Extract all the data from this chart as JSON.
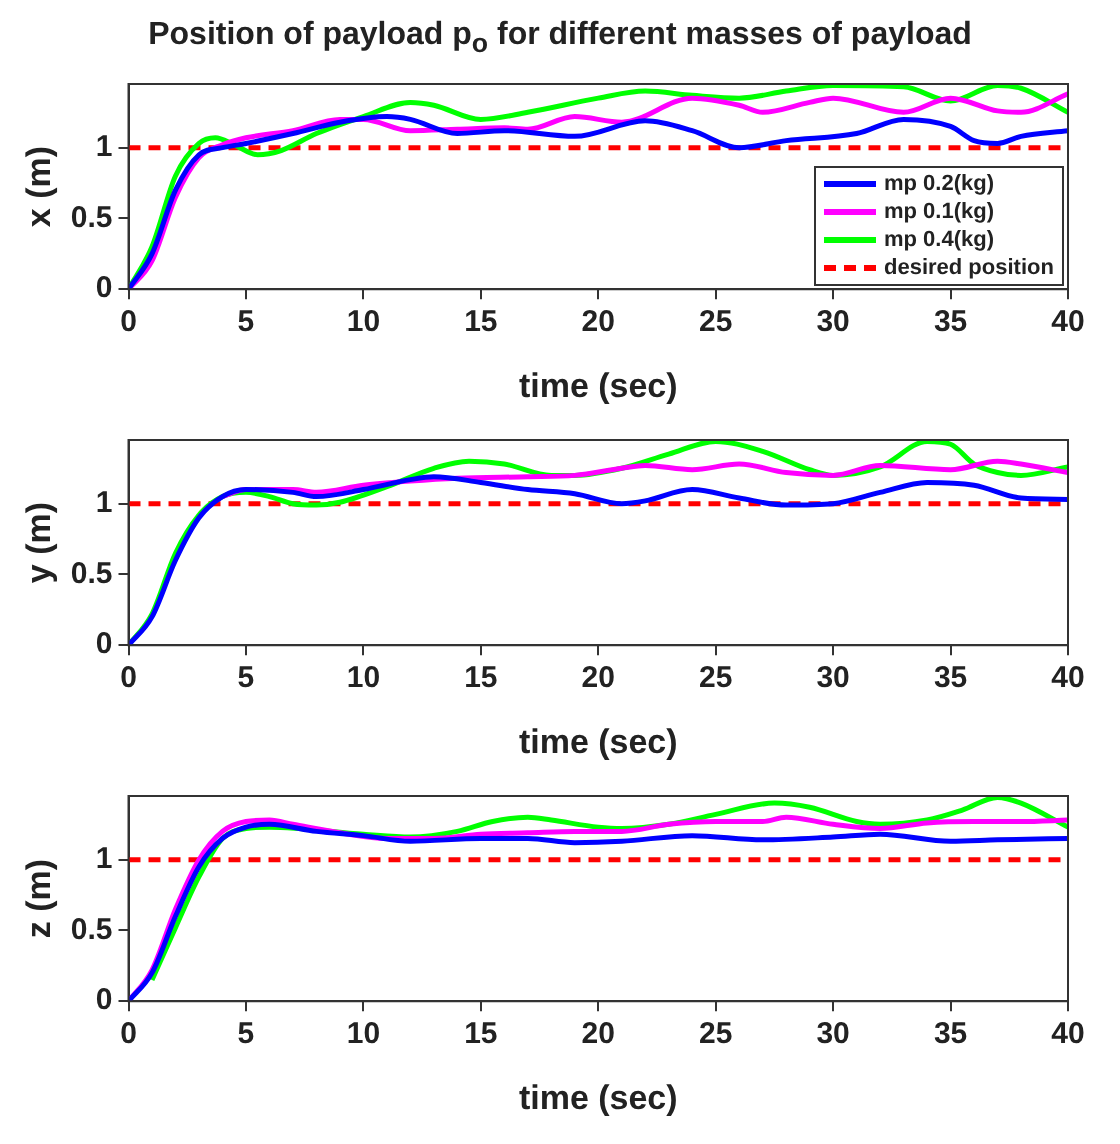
{
  "chart_data": [
    {
      "type": "line",
      "title": "Position of payload p$_{o}$ for different masses of payload",
      "xlabel": "time (sec)",
      "ylabel": "x (m)",
      "xlim": [
        0,
        40
      ],
      "xticks": [
        0,
        5,
        10,
        15,
        20,
        25,
        30,
        35,
        40
      ],
      "ylim": [
        0,
        1.45
      ],
      "yticks": [
        0,
        0.5,
        1
      ],
      "grid": false,
      "legend": "bottom right",
      "marker": "none",
      "line_style": "solid",
      "ref_lines": [
        {
          "axis": "y",
          "value": 1,
          "label": "desired position",
          "color": "#ff0000",
          "line_style": "dashed"
        }
      ],
      "series": [
        {
          "name": "mp 0.2(kg)",
          "color": "#0000ff",
          "x": [
            0,
            1,
            2,
            3,
            4,
            5,
            7,
            9,
            11,
            12,
            14,
            16,
            19,
            22,
            24,
            26,
            28,
            31,
            33,
            35,
            36,
            37,
            38,
            40
          ],
          "values": [
            0,
            0.25,
            0.7,
            0.95,
            1.0,
            1.03,
            1.1,
            1.18,
            1.22,
            1.2,
            1.1,
            1.12,
            1.08,
            1.19,
            1.12,
            1.0,
            1.05,
            1.1,
            1.2,
            1.15,
            1.05,
            1.03,
            1.08,
            1.12
          ]
        },
        {
          "name": "mp 0.1(kg)",
          "color": "#ff00ff",
          "x": [
            0,
            1,
            2,
            3,
            4,
            5,
            7,
            9,
            10,
            12,
            14,
            16,
            17,
            19,
            21,
            24,
            26,
            27,
            29,
            30,
            33,
            35,
            37,
            38,
            40
          ],
          "values": [
            0,
            0.2,
            0.65,
            0.93,
            1.02,
            1.07,
            1.12,
            1.2,
            1.2,
            1.12,
            1.13,
            1.14,
            1.13,
            1.22,
            1.18,
            1.35,
            1.3,
            1.25,
            1.32,
            1.35,
            1.25,
            1.35,
            1.26,
            1.25,
            1.38
          ]
        },
        {
          "name": "mp 0.4(kg)",
          "color": "#00ff00",
          "x": [
            0,
            1,
            2,
            3,
            3.7,
            4.5,
            5.5,
            6.5,
            8,
            10,
            12,
            13,
            15,
            17,
            20,
            22,
            24,
            26,
            28,
            30,
            33,
            35,
            37,
            38,
            40
          ],
          "values": [
            0,
            0.3,
            0.8,
            1.03,
            1.07,
            1.02,
            0.95,
            0.98,
            1.1,
            1.22,
            1.32,
            1.3,
            1.2,
            1.25,
            1.35,
            1.4,
            1.37,
            1.35,
            1.4,
            1.44,
            1.43,
            1.33,
            1.44,
            1.42,
            1.25
          ]
        }
      ]
    },
    {
      "type": "line",
      "xlabel": "time (sec)",
      "ylabel": "y (m)",
      "xlim": [
        0,
        40
      ],
      "xticks": [
        0,
        5,
        10,
        15,
        20,
        25,
        30,
        35,
        40
      ],
      "ylim": [
        0,
        1.45
      ],
      "yticks": [
        0,
        0.5,
        1
      ],
      "grid": false,
      "marker": "none",
      "line_style": "solid",
      "ref_lines": [
        {
          "axis": "y",
          "value": 1,
          "color": "#ff0000",
          "line_style": "dashed"
        }
      ],
      "series": [
        {
          "color": "#0000ff",
          "x": [
            0,
            1,
            2,
            3,
            4,
            5,
            7,
            8,
            10,
            12,
            13,
            15,
            17,
            19,
            21,
            22,
            24,
            26,
            28,
            30,
            32,
            34,
            36,
            38,
            40
          ],
          "values": [
            0,
            0.2,
            0.6,
            0.9,
            1.05,
            1.1,
            1.08,
            1.05,
            1.1,
            1.17,
            1.19,
            1.15,
            1.1,
            1.07,
            1.0,
            1.02,
            1.1,
            1.04,
            0.99,
            1.0,
            1.08,
            1.15,
            1.13,
            1.04,
            1.03
          ]
        },
        {
          "color": "#ff00ff",
          "x": [
            4,
            5,
            7,
            8,
            10,
            12,
            14,
            17,
            19,
            21,
            22,
            24,
            26,
            28,
            30,
            32,
            35,
            37,
            38,
            40
          ],
          "values": [
            1.05,
            1.1,
            1.1,
            1.08,
            1.13,
            1.16,
            1.18,
            1.19,
            1.2,
            1.25,
            1.27,
            1.24,
            1.28,
            1.22,
            1.2,
            1.27,
            1.24,
            1.3,
            1.28,
            1.22
          ]
        },
        {
          "color": "#00ff00",
          "x": [
            0,
            1,
            2,
            3,
            4,
            5,
            6,
            7,
            8,
            9,
            11,
            13,
            14.5,
            16,
            18,
            19,
            21,
            23,
            25,
            27,
            29,
            30,
            32,
            34,
            35,
            36,
            37,
            38,
            40
          ],
          "values": [
            0,
            0.22,
            0.65,
            0.92,
            1.05,
            1.08,
            1.05,
            1.0,
            0.99,
            1.01,
            1.12,
            1.25,
            1.3,
            1.28,
            1.2,
            1.2,
            1.25,
            1.35,
            1.44,
            1.37,
            1.24,
            1.2,
            1.26,
            1.44,
            1.42,
            1.28,
            1.22,
            1.2,
            1.26
          ]
        }
      ]
    },
    {
      "type": "line",
      "xlabel": "time (sec)",
      "ylabel": "z (m)",
      "xlim": [
        0,
        40
      ],
      "xticks": [
        0,
        5,
        10,
        15,
        20,
        25,
        30,
        35,
        40
      ],
      "ylim": [
        0,
        1.45
      ],
      "yticks": [
        0,
        0.5,
        1
      ],
      "grid": false,
      "marker": "none",
      "line_style": "solid",
      "ref_lines": [
        {
          "axis": "y",
          "value": 1,
          "color": "#ff0000",
          "line_style": "dashed"
        }
      ],
      "series": [
        {
          "color": "#0000ff",
          "x": [
            0,
            1,
            2,
            3,
            4,
            5,
            6,
            8,
            10,
            12,
            15,
            17,
            19,
            21,
            24,
            27,
            30,
            32,
            35,
            37,
            40
          ],
          "values": [
            0,
            0.2,
            0.6,
            0.95,
            1.15,
            1.23,
            1.25,
            1.2,
            1.17,
            1.13,
            1.15,
            1.15,
            1.12,
            1.13,
            1.17,
            1.14,
            1.16,
            1.18,
            1.13,
            1.14,
            1.15
          ]
        },
        {
          "color": "#ff00ff",
          "x": [
            0,
            1,
            2,
            3,
            4,
            5,
            6,
            7,
            9,
            11,
            13,
            15,
            17,
            19,
            21,
            23,
            25,
            27,
            28,
            30,
            32,
            34,
            36,
            38,
            40
          ],
          "values": [
            0,
            0.22,
            0.65,
            1.0,
            1.2,
            1.27,
            1.28,
            1.25,
            1.19,
            1.15,
            1.15,
            1.18,
            1.19,
            1.2,
            1.2,
            1.25,
            1.27,
            1.27,
            1.3,
            1.25,
            1.22,
            1.26,
            1.27,
            1.27,
            1.28
          ]
        },
        {
          "color": "#00ff00",
          "x": [
            1,
            2,
            3,
            4,
            5,
            6,
            10,
            12,
            14,
            15.5,
            17,
            18,
            20,
            21,
            23,
            25,
            27.5,
            29,
            31,
            32,
            34,
            35.5,
            37,
            38,
            40
          ],
          "values": [
            0.15,
            0.52,
            0.88,
            1.15,
            1.22,
            1.23,
            1.18,
            1.16,
            1.2,
            1.27,
            1.3,
            1.28,
            1.23,
            1.22,
            1.25,
            1.32,
            1.4,
            1.37,
            1.27,
            1.25,
            1.28,
            1.35,
            1.44,
            1.4,
            1.23
          ]
        }
      ]
    }
  ]
}
